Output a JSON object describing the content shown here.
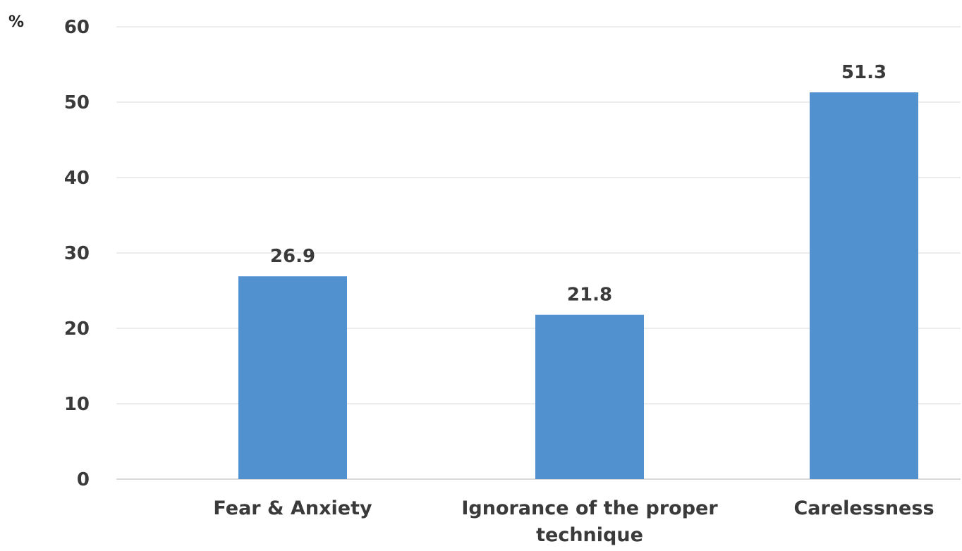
{
  "chart_data": {
    "type": "bar",
    "unit_label": "%",
    "categories": [
      [
        "Fear & Anxiety"
      ],
      [
        "Ignorance of the proper",
        "technique"
      ],
      [
        "Carelessness"
      ]
    ],
    "values": [
      26.9,
      21.8,
      51.3
    ],
    "value_labels": [
      "26.9",
      "21.8",
      "51.3"
    ],
    "ylim": [
      0,
      60
    ],
    "yticks": [
      0,
      10,
      20,
      30,
      40,
      50,
      60
    ],
    "grid": true,
    "legend": "none",
    "bar_color": "#5191d0",
    "grid_color": "#e6e6e6",
    "axis_color": "#d9d9d9"
  }
}
